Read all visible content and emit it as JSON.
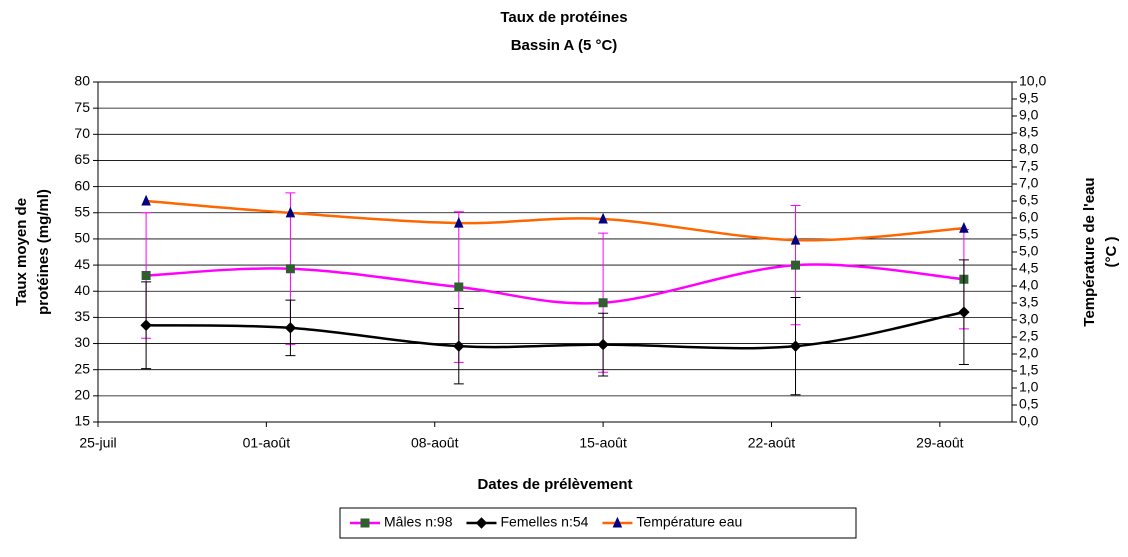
{
  "chart_data": {
    "type": "line",
    "title": "Taux de protéines",
    "subtitle": "Bassin A (5 °C)",
    "x_label": "Dates de prélèvement",
    "y_label": [
      "Taux moyen de",
      "protéines (mg/ml)"
    ],
    "y2_label": [
      "Température de l'eau",
      "(°C )"
    ],
    "x": [
      2,
      8,
      15,
      21,
      29,
      36
    ],
    "xlim": [
      0,
      38
    ],
    "xticks": [
      {
        "value": 0,
        "label": "25-juil"
      },
      {
        "value": 7,
        "label": "01-août"
      },
      {
        "value": 14,
        "label": "08-août"
      },
      {
        "value": 21,
        "label": "15-août"
      },
      {
        "value": 28,
        "label": "22-août"
      },
      {
        "value": 35,
        "label": "29-août"
      }
    ],
    "ylim": [
      15,
      80
    ],
    "yticks": [
      15,
      20,
      25,
      30,
      35,
      40,
      45,
      50,
      55,
      60,
      65,
      70,
      75,
      80
    ],
    "y2lim": [
      0,
      10
    ],
    "y2ticks": [
      {
        "value": 0,
        "label": "0,0"
      },
      {
        "value": 0.5,
        "label": "0,5"
      },
      {
        "value": 1,
        "label": "1,0"
      },
      {
        "value": 1.5,
        "label": "1,5"
      },
      {
        "value": 2,
        "label": "2,0"
      },
      {
        "value": 2.5,
        "label": "2,5"
      },
      {
        "value": 3,
        "label": "3,0"
      },
      {
        "value": 3.5,
        "label": "3,5"
      },
      {
        "value": 4,
        "label": "4,0"
      },
      {
        "value": 4.5,
        "label": "4,5"
      },
      {
        "value": 5,
        "label": "5,0"
      },
      {
        "value": 5.5,
        "label": "5,5"
      },
      {
        "value": 6,
        "label": "6,0"
      },
      {
        "value": 6.5,
        "label": "6,5"
      },
      {
        "value": 7,
        "label": "7,0"
      },
      {
        "value": 7.5,
        "label": "7,5"
      },
      {
        "value": 8,
        "label": "8,0"
      },
      {
        "value": 8.5,
        "label": "8,5"
      },
      {
        "value": 9,
        "label": "9,0"
      },
      {
        "value": 9.5,
        "label": "9,5"
      },
      {
        "value": 10,
        "label": "10,0"
      }
    ],
    "grid": true,
    "legend": "bottom",
    "series": [
      {
        "name": "Mâles n:98",
        "color": "#ff00ff",
        "marker": "square",
        "marker_color": "#2f5f2f",
        "values": [
          43,
          44.3,
          40.8,
          37.8,
          45,
          42.3
        ],
        "errors": [
          12,
          14.5,
          14.4,
          13.3,
          11.4,
          9.5
        ]
      },
      {
        "name": "Femelles n:54",
        "color": "#000000",
        "marker": "diamond",
        "marker_color": "#000000",
        "values": [
          33.5,
          33,
          29.5,
          29.8,
          29.5,
          36
        ],
        "errors": [
          8.3,
          5.3,
          7.2,
          6,
          9.3,
          10
        ]
      },
      {
        "name": "Température eau",
        "color": "#ff6600",
        "marker": "triangle",
        "marker_color": "#000080",
        "axis": "y2",
        "values": [
          6.5,
          6.15,
          5.85,
          5.97,
          5.35,
          5.7
        ]
      }
    ]
  }
}
